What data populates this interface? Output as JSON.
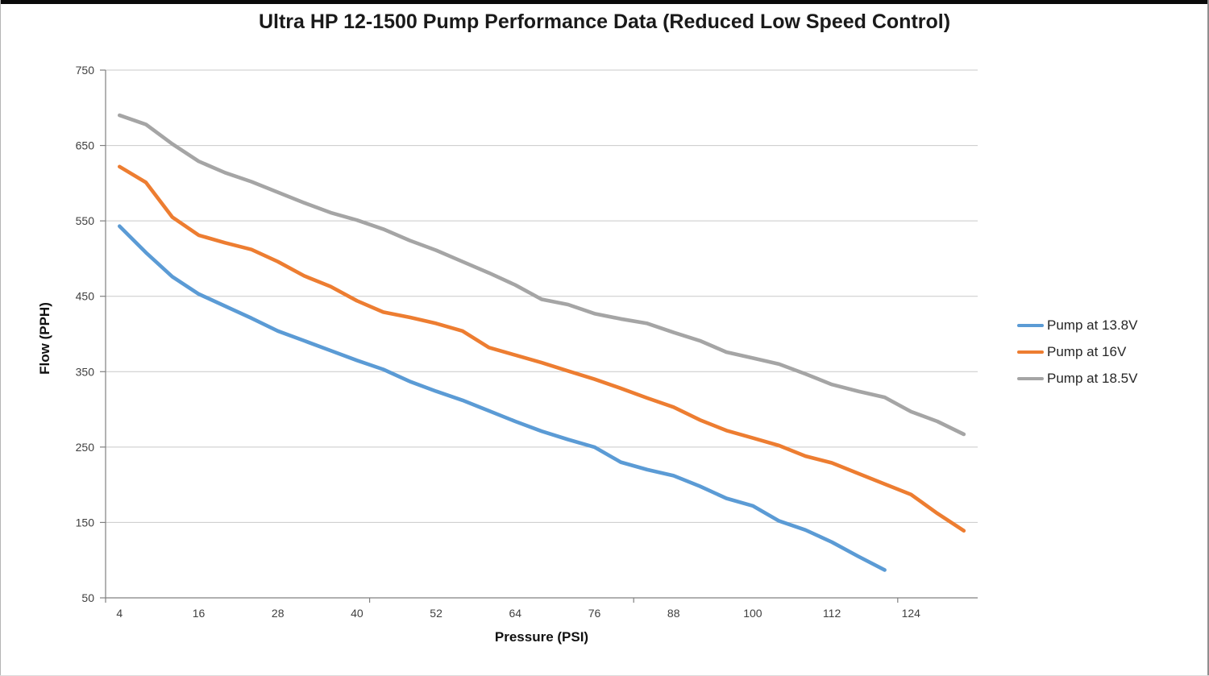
{
  "chart_data": {
    "type": "line",
    "title": "Ultra HP 12-1500 Pump Performance Data (Reduced Low Speed  Control)",
    "xlabel": "Pressure (PSI)",
    "ylabel": "Flow (PPH)",
    "x": [
      4,
      8,
      12,
      16,
      20,
      24,
      28,
      32,
      36,
      40,
      44,
      48,
      52,
      56,
      60,
      64,
      68,
      72,
      76,
      80,
      84,
      88,
      92,
      96,
      100,
      104,
      108,
      112,
      116,
      120,
      124,
      128,
      132
    ],
    "series": [
      {
        "name": "Pump at 13.8V",
        "color": "#5B9BD5",
        "values": [
          543,
          508,
          476,
          453,
          437,
          421,
          404,
          391,
          378,
          365,
          353,
          337,
          324,
          312,
          298,
          284,
          271,
          260,
          250,
          230,
          220,
          212,
          198,
          182,
          172,
          152,
          140,
          124,
          105,
          87
        ]
      },
      {
        "name": "Pump at 16V",
        "color": "#ED7D31",
        "values": [
          622,
          601,
          555,
          531,
          521,
          512,
          496,
          477,
          463,
          444,
          429,
          422,
          414,
          404,
          382,
          372,
          362,
          351,
          340,
          328,
          315,
          303,
          286,
          272,
          262,
          252,
          238,
          229,
          215,
          201,
          187,
          162,
          139
        ]
      },
      {
        "name": "Pump at 18.5V",
        "color": "#A5A5A5",
        "values": [
          690,
          678,
          652,
          629,
          614,
          602,
          588,
          574,
          561,
          551,
          539,
          524,
          511,
          496,
          481,
          465,
          446,
          439,
          427,
          420,
          414,
          402,
          391,
          376,
          368,
          360,
          347,
          333,
          324,
          316,
          297,
          284,
          267
        ]
      }
    ],
    "y_ticks": [
      50,
      150,
      250,
      350,
      450,
      550,
      650,
      750
    ],
    "x_tick_labels": [
      4,
      16,
      28,
      40,
      52,
      64,
      76,
      88,
      100,
      112,
      124
    ],
    "ylim": [
      50,
      750
    ],
    "grid": "horizontal",
    "gridline_color": "#c9c9c9",
    "axis_line_color": "#808080",
    "tick_label_color": "#3f3f3f",
    "legend_position": "right"
  }
}
